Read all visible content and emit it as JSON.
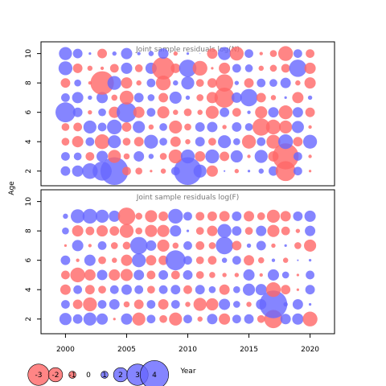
{
  "chart_data": {
    "type": "scatter",
    "description_kind": "bubble",
    "ylabel": "Age",
    "xlabel": "Year",
    "colors": {
      "positive": "#6666ff",
      "negative": "#ff6666"
    },
    "xlim": [
      1998,
      2022
    ],
    "xticks": [
      2000,
      2005,
      2010,
      2015,
      2020
    ],
    "panels": [
      {
        "title": "Joint sample residuals log(N)",
        "ylim": [
          1,
          10.8
        ],
        "yticks": [
          2,
          4,
          6,
          8,
          10
        ],
        "ages": [
          2,
          3,
          4,
          5,
          6,
          7,
          8,
          9,
          10
        ],
        "years": [
          2000,
          2001,
          2002,
          2003,
          2004,
          2005,
          2006,
          2007,
          2008,
          2009,
          2010,
          2011,
          2012,
          2013,
          2014,
          2015,
          2016,
          2017,
          2018,
          2019,
          2020
        ],
        "residuals": [
          [
            1.1,
            1.3,
            1.8,
            2.2,
            3.2,
            -1.0,
            -0.8,
            -0.3,
            -0.6,
            1.0,
            3.2,
            1.5,
            -1.3,
            0.2,
            -0.5,
            0.3,
            0.6,
            1.1,
            -2.3,
            1.0,
            -0.3
          ],
          [
            1.0,
            0.9,
            -1.0,
            1.3,
            -1.5,
            -0.7,
            1.2,
            0.6,
            -0.8,
            -1.6,
            1.6,
            -1.2,
            1.6,
            -1.1,
            1.4,
            -0.4,
            1.5,
            -1.2,
            -3.0,
            1.0,
            -0.4
          ],
          [
            -0.9,
            -1.3,
            1.0,
            -1.7,
            1.5,
            -0.9,
            -1.1,
            1.6,
            0.9,
            -1.2,
            -0.6,
            1.1,
            -0.9,
            1.5,
            0.8,
            -1.6,
            1.0,
            -1.6,
            1.7,
            -1.1,
            1.6
          ],
          [
            -0.9,
            -1.0,
            1.5,
            1.0,
            1.7,
            -1.1,
            1.4,
            -0.6,
            0.9,
            -1.5,
            -0.8,
            1.1,
            1.2,
            -0.5,
            1.1,
            0.9,
            -2.0,
            -1.7,
            -1.5,
            1.4,
            -0.4
          ],
          [
            2.3,
            1.1,
            -0.5,
            0.9,
            -1.3,
            2.3,
            -1.3,
            1.0,
            -1.4,
            -0.6,
            -0.9,
            -0.6,
            -1.5,
            1.1,
            -1.0,
            0.4,
            -1.4,
            1.2,
            -1.6,
            1.2,
            -1.1
          ],
          [
            1.0,
            1.3,
            0.5,
            1.3,
            -0.7,
            -1.6,
            1.1,
            0.8,
            -1.1,
            1.4,
            0.5,
            -0.8,
            -1.3,
            -2.3,
            1.2,
            2.0,
            -1.1,
            -0.6,
            0.3,
            -1.3,
            0.5
          ],
          [
            -1.1,
            0.8,
            -0.4,
            -2.7,
            1.6,
            -1.3,
            -0.6,
            1.0,
            -1.7,
            0.6,
            1.5,
            -0.9,
            -1.1,
            -2.0,
            0.5,
            -1.1,
            1.0,
            0.9,
            1.2,
            -0.6,
            -1.3
          ],
          [
            1.6,
            -1.1,
            -0.6,
            -0.4,
            -1.0,
            1.3,
            -0.9,
            1.3,
            -2.6,
            -1.1,
            2.0,
            -1.7,
            -0.3,
            -1.3,
            1.0,
            0.9,
            -0.6,
            -0.8,
            -1.0,
            2.0,
            -1.3
          ],
          [
            1.5,
            1.1,
            0.3,
            -1.1,
            0.5,
            1.3,
            0.4,
            0.6,
            1.2,
            -0.5,
            0.3,
            0.1,
            -1.2,
            1.5,
            -1.6,
            1.0,
            -0.4,
            -0.8,
            -1.7,
            1.0,
            -1.0
          ]
        ]
      },
      {
        "title": "Joint sample residuals log(F)",
        "ylim": [
          1,
          10.8
        ],
        "yticks": [
          2,
          4,
          6,
          8,
          10
        ],
        "ages": [
          2,
          3,
          4,
          5,
          6,
          7,
          8,
          9
        ],
        "years": [
          2000,
          2001,
          2002,
          2003,
          2004,
          2005,
          2006,
          2007,
          2008,
          2009,
          2010,
          2011,
          2012,
          2013,
          2014,
          2015,
          2016,
          2017,
          2018,
          2019,
          2020
        ],
        "residuals": [
          [
            1.4,
            1.1,
            1.5,
            1.3,
            -0.3,
            1.3,
            -1.5,
            1.0,
            -0.9,
            -1.5,
            1.0,
            -0.6,
            1.2,
            -1.3,
            1.0,
            1.1,
            -0.9,
            -2.1,
            1.2,
            1.3,
            -1.7
          ],
          [
            1.0,
            -1.1,
            -1.6,
            1.0,
            1.2,
            -0.7,
            -1.1,
            1.0,
            -1.2,
            1.0,
            -0.6,
            -1.5,
            -1.4,
            1.3,
            0.8,
            -0.6,
            1.2,
            3.2,
            0.5,
            1.2,
            0.3
          ],
          [
            -1.2,
            1.0,
            -1.1,
            -0.9,
            1.0,
            1.2,
            1.0,
            -0.9,
            1.0,
            1.1,
            -1.0,
            1.1,
            0.8,
            -1.2,
            0.8,
            1.4,
            1.3,
            -1.7,
            -1.1,
            -0.3,
            1.1
          ],
          [
            -1.0,
            -1.7,
            -1.3,
            1.2,
            -1.3,
            -1.4,
            1.2,
            -1.0,
            1.1,
            -1.0,
            1.1,
            -0.9,
            -0.7,
            -0.5,
            -0.5,
            1.3,
            -0.4,
            1.3,
            0.8,
            -0.3,
            1.0
          ],
          [
            1.1,
            -0.4,
            1.3,
            -0.9,
            -0.6,
            -1.3,
            1.6,
            -1.2,
            -1.1,
            2.3,
            1.0,
            -0.9,
            -1.0,
            0.6,
            1.0,
            -1.2,
            -0.7,
            0.4,
            -0.6,
            0.2,
            0.3
          ],
          [
            -0.3,
            1.3,
            -0.4,
            1.0,
            -0.8,
            -0.9,
            2.0,
            1.2,
            -1.4,
            -0.7,
            1.0,
            -1.0,
            -0.8,
            2.0,
            -1.1,
            0.5,
            1.1,
            -0.5,
            0.3,
            -0.8,
            -1.4
          ],
          [
            0.8,
            -1.3,
            -1.0,
            -1.3,
            -1.1,
            -1.6,
            -0.8,
            -1.4,
            -1.4,
            1.3,
            0.3,
            -0.9,
            -1.2,
            1.6,
            1.1,
            -0.9,
            1.2,
            -1.4,
            -1.0,
            -0.5,
            1.2
          ],
          [
            0.6,
            1.6,
            1.7,
            1.5,
            1.3,
            -2.0,
            -0.8,
            -1.4,
            -1.1,
            1.7,
            1.0,
            -1.0,
            -1.1,
            -1.2,
            1.1,
            -1.2,
            -0.9,
            -1.5,
            -1.2,
            1.1,
            1.3
          ]
        ]
      }
    ],
    "legend": {
      "position": "bottom-left",
      "values": [
        -3,
        -2,
        -1,
        0,
        1,
        2,
        3,
        4
      ],
      "labels": [
        "-3",
        "-2",
        "-1",
        "0",
        "1",
        "2",
        "3",
        "4"
      ]
    }
  }
}
